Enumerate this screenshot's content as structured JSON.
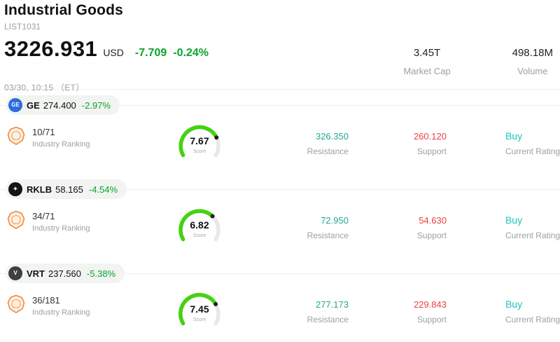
{
  "header": {
    "title": "Industrial Goods",
    "list_id": "LIST1031",
    "price": "3226.931",
    "currency": "USD",
    "change_value": "-7.709",
    "change_pct": "-0.24%",
    "datetime": "03/30, 10:15 （ET）",
    "market_cap_value": "3.45T",
    "market_cap_label": "Market Cap",
    "volume_value": "498.18M",
    "volume_label": "Volume"
  },
  "labels": {
    "industry_ranking": "Industry Ranking",
    "score": "Score",
    "resistance": "Resistance",
    "support": "Support",
    "current_rating": "Current Rating"
  },
  "colors": {
    "change_green": "#0aa32c",
    "resistance_teal": "#22a98e",
    "support_red": "#ea4242",
    "rating_teal": "#1fc4b8",
    "gauge_green": "#43d30f",
    "gauge_track": "#e8e8e8",
    "badge_orange": "#ed8a3e"
  },
  "chart_data": [
    {
      "type": "gauge",
      "ticker": "GE",
      "score": 7.67,
      "scale_max": 10,
      "label": "Score"
    },
    {
      "type": "gauge",
      "ticker": "RKLB",
      "score": 6.82,
      "scale_max": 10,
      "label": "Score"
    },
    {
      "type": "gauge",
      "ticker": "VRT",
      "score": 7.45,
      "scale_max": 10,
      "label": "Score"
    }
  ],
  "stocks": [
    {
      "ticker": "GE",
      "price": "274.400",
      "change_pct": "-2.97%",
      "logo_bg": "#2d6cdf",
      "logo_text": "GE",
      "ranking": "10/71",
      "score": 7.67,
      "score_label": "7.67",
      "resistance": "326.350",
      "support": "260.120",
      "rating": "Buy"
    },
    {
      "ticker": "RKLB",
      "price": "58.165",
      "change_pct": "-4.54%",
      "logo_bg": "#141414",
      "logo_text": "✦",
      "ranking": "34/71",
      "score": 6.82,
      "score_label": "6.82",
      "resistance": "72.950",
      "support": "54.630",
      "rating": "Buy"
    },
    {
      "ticker": "VRT",
      "price": "237.560",
      "change_pct": "-5.38%",
      "logo_bg": "#3d4045",
      "logo_text": "V",
      "ranking": "36/181",
      "score": 7.45,
      "score_label": "7.45",
      "resistance": "277.173",
      "support": "229.843",
      "rating": "Buy"
    }
  ]
}
